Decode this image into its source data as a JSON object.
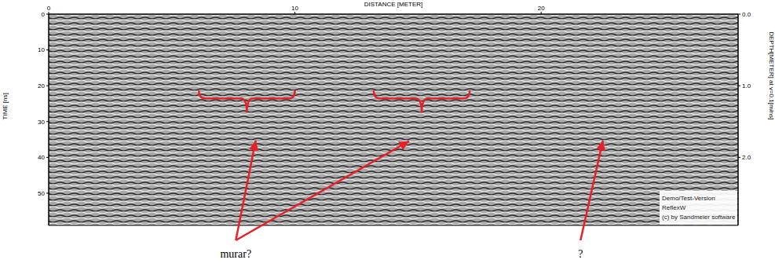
{
  "chart_data": {
    "type": "radargram",
    "x_label": "DISTANCE [METER]",
    "y_label": "TIME [ns]",
    "y2_label": "DEPTH[METER] at v=0.1[m/ns]",
    "xlim": [
      0,
      28
    ],
    "xticks": [
      0,
      10,
      20
    ],
    "ylim": [
      0,
      59
    ],
    "yticks": [
      0,
      10,
      20,
      30,
      40,
      50
    ],
    "y2lim": [
      0,
      2.95
    ],
    "y2ticks": [
      {
        "value": 0,
        "label": "0.0"
      },
      {
        "value": 1,
        "label": "1.0"
      },
      {
        "value": 2,
        "label": "2.0"
      }
    ],
    "color": "#e8202a",
    "annotations": [
      {
        "text": "murar?",
        "x": 7.6,
        "points": [
          [
            8.4,
            35.6
          ],
          [
            14.6,
            35.6
          ]
        ]
      },
      {
        "text": "?",
        "x": 21.6,
        "points": [
          [
            22.5,
            35.6
          ]
        ]
      }
    ],
    "brackets": [
      {
        "x": [
          6.1,
          10.0
        ],
        "y": 23.5,
        "tip": 27.5
      },
      {
        "x": [
          13.2,
          17.1
        ],
        "y": 23.5,
        "tip": 27.5
      }
    ],
    "watermark": [
      "Demo/Test-Version",
      "ReflexW",
      "(c) by Sandmeier software"
    ]
  }
}
